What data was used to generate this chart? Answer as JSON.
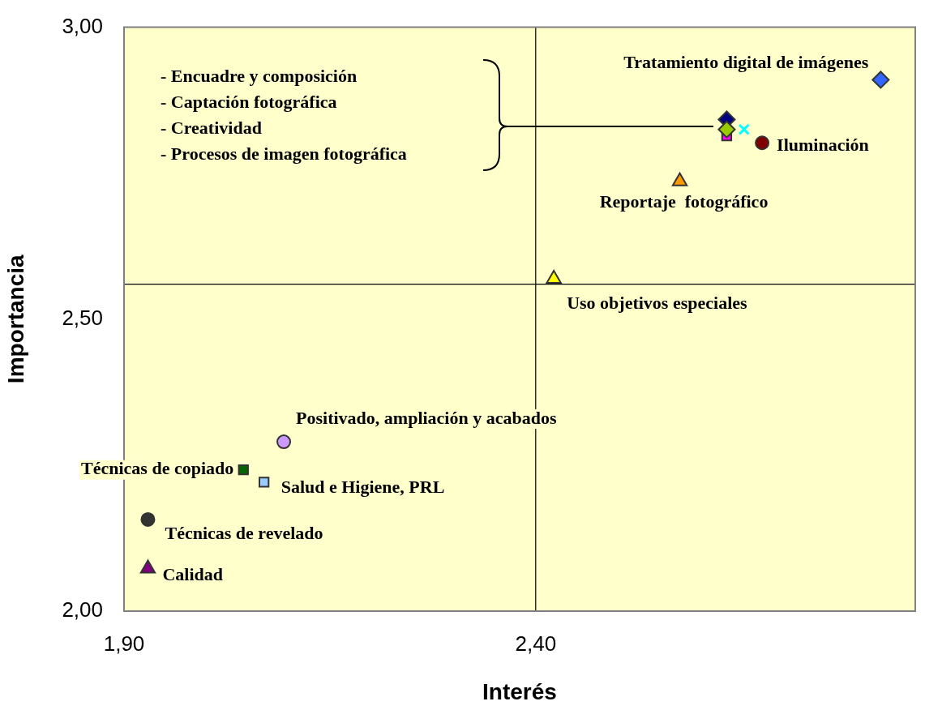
{
  "chart_data": {
    "type": "scatter",
    "xlabel": "Interés",
    "ylabel": "Importancia",
    "xlim": [
      1.9,
      2.861
    ],
    "xticks": [
      {
        "value": 1.9,
        "label": "1,90"
      },
      {
        "value": 2.4,
        "label": "2,40"
      }
    ],
    "ylim": [
      2,
      3
    ],
    "yticks": [
      {
        "value": 2,
        "label": "2,00"
      },
      {
        "value": 2.5,
        "label": "2,50"
      },
      {
        "value": 3,
        "label": "3,00"
      }
    ],
    "grid": false,
    "legend": false,
    "ref_lines": [
      {
        "axis": "x",
        "value": 2.4,
        "color": "#000000"
      },
      {
        "axis": "y",
        "value": 2.56,
        "color": "#000000"
      }
    ],
    "annotations": [
      "- Encuadre y composición",
      "- Captación fotográfica",
      "- Creatividad",
      "- Procesos de imagen fotográfica"
    ],
    "series": [
      {
        "name": "Tratamiento digital de imágenes",
        "color": "#3366ff",
        "marker": "diamond",
        "x": [
          2.819
        ],
        "values": [
          2.91
        ]
      },
      {
        "color": "#000080",
        "marker": "diamond",
        "x": [
          2.632
        ],
        "values": [
          2.842
        ]
      },
      {
        "color": "#ff00ff",
        "marker": "square",
        "x": [
          2.632
        ],
        "values": [
          2.814
        ]
      },
      {
        "color": "#99cc00",
        "marker": "diamond",
        "x": [
          2.632
        ],
        "values": [
          2.825
        ]
      },
      {
        "color": "#00ffff",
        "marker": "cross",
        "x": [
          2.653
        ],
        "values": [
          2.825
        ]
      },
      {
        "name": "Iluminación",
        "color": "#800000",
        "marker": "circle",
        "x": [
          2.675
        ],
        "values": [
          2.802
        ]
      },
      {
        "name": "Reportaje  fotográfico",
        "color": "#ff9900",
        "marker": "triangle",
        "x": [
          2.575
        ],
        "values": [
          2.736
        ]
      },
      {
        "name": "Uso objetivos especiales",
        "color": "#ffff00",
        "marker": "triangle",
        "x": [
          2.422
        ],
        "values": [
          2.569
        ]
      },
      {
        "name": "Positivado, ampliación y acabados",
        "color": "#cc99ff",
        "marker": "circle",
        "x": [
          2.094
        ],
        "values": [
          2.29
        ]
      },
      {
        "name": "Técnicas de copiado",
        "color": "#006600",
        "marker": "square",
        "x": [
          2.045
        ],
        "values": [
          2.242
        ]
      },
      {
        "name": "Salud e Higiene, PRL",
        "color": "#99ccff",
        "marker": "square",
        "x": [
          2.07
        ],
        "values": [
          2.221
        ]
      },
      {
        "name": "Técnicas de revelado",
        "color": "#333333",
        "marker": "circle",
        "x": [
          1.929
        ],
        "values": [
          2.157
        ]
      },
      {
        "name": "Calidad",
        "color": "#800080",
        "marker": "triangle",
        "x": [
          1.929
        ],
        "values": [
          2.073
        ]
      }
    ]
  }
}
